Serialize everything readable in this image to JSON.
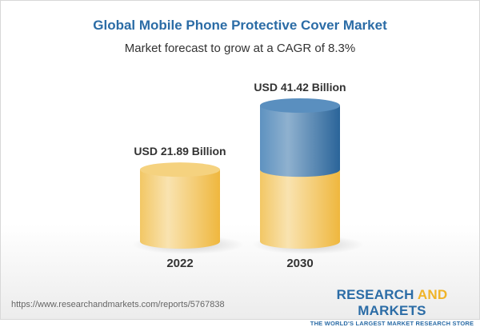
{
  "title": "Global Mobile Phone Protective Cover Market",
  "subtitle": "Market forecast to grow at a CAGR of 8.3%",
  "chart_data": {
    "type": "bar",
    "style": "3d-cylinder",
    "categories": [
      "2022",
      "2030"
    ],
    "values": [
      21.89,
      41.42
    ],
    "data_labels": [
      "USD 21.89 Billion",
      "USD 41.42 Billion"
    ],
    "colors": {
      "base": "#f2c45a",
      "growth": "#3f7db3"
    },
    "grid": false
  },
  "footer": {
    "url": "https://www.researchandmarkets.com/reports/5767838",
    "logo_part1": "RESEARCH ",
    "logo_part2": "AND",
    "logo_part3": " MARKETS",
    "tagline": "THE WORLD'S LARGEST MARKET RESEARCH STORE"
  }
}
